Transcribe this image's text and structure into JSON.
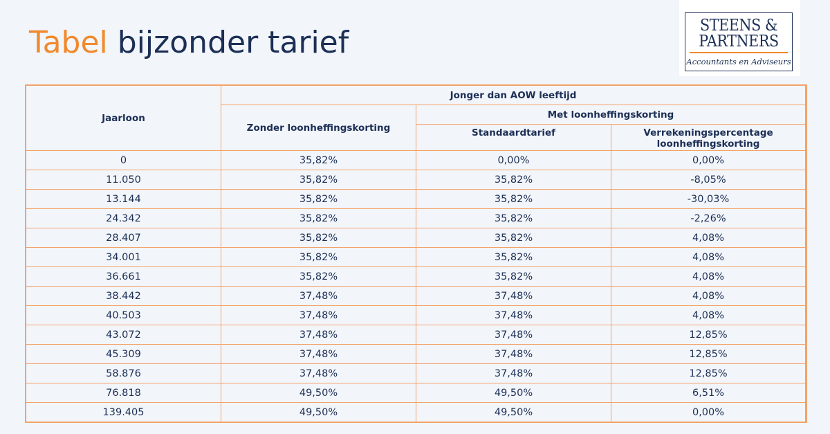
{
  "title": {
    "accent": "Tabel",
    "main": "bijzonder tarief"
  },
  "logo": {
    "line1": "STEENS &",
    "line2": "PARTNERS",
    "subtitle": "Accountants en Adviseurs"
  },
  "table": {
    "headers": {
      "jaarloon": "Jaarloon",
      "group": "Jonger dan AOW leeftijd",
      "zonder": "Zonder loonheffingskorting",
      "met": "Met loonheffingskorting",
      "standaard": "Standaardtarief",
      "verrekening_line1": "Verrekeningspercentage",
      "verrekening_line2": "loonheffingskorting"
    },
    "rows": [
      [
        "0",
        "35,82%",
        "0,00%",
        "0,00%"
      ],
      [
        "11.050",
        "35,82%",
        "35,82%",
        "-8,05%"
      ],
      [
        "13.144",
        "35,82%",
        "35,82%",
        "-30,03%"
      ],
      [
        "24.342",
        "35,82%",
        "35,82%",
        "-2,26%"
      ],
      [
        "28.407",
        "35,82%",
        "35,82%",
        "4,08%"
      ],
      [
        "34.001",
        "35,82%",
        "35,82%",
        "4,08%"
      ],
      [
        "36.661",
        "35,82%",
        "35,82%",
        "4,08%"
      ],
      [
        "38.442",
        "37,48%",
        "37,48%",
        "4,08%"
      ],
      [
        "40.503",
        "37,48%",
        "37,48%",
        "4,08%"
      ],
      [
        "43.072",
        "37,48%",
        "37,48%",
        "12,85%"
      ],
      [
        "45.309",
        "37,48%",
        "37,48%",
        "12,85%"
      ],
      [
        "58.876",
        "37,48%",
        "37,48%",
        "12,85%"
      ],
      [
        "76.818",
        "49,50%",
        "49,50%",
        "6,51%"
      ],
      [
        "139.405",
        "49,50%",
        "49,50%",
        "0,00%"
      ]
    ]
  },
  "colors": {
    "accent": "#f08a2e",
    "navy": "#1c2f55",
    "border": "#f3a268",
    "background": "#f2f5fa"
  }
}
